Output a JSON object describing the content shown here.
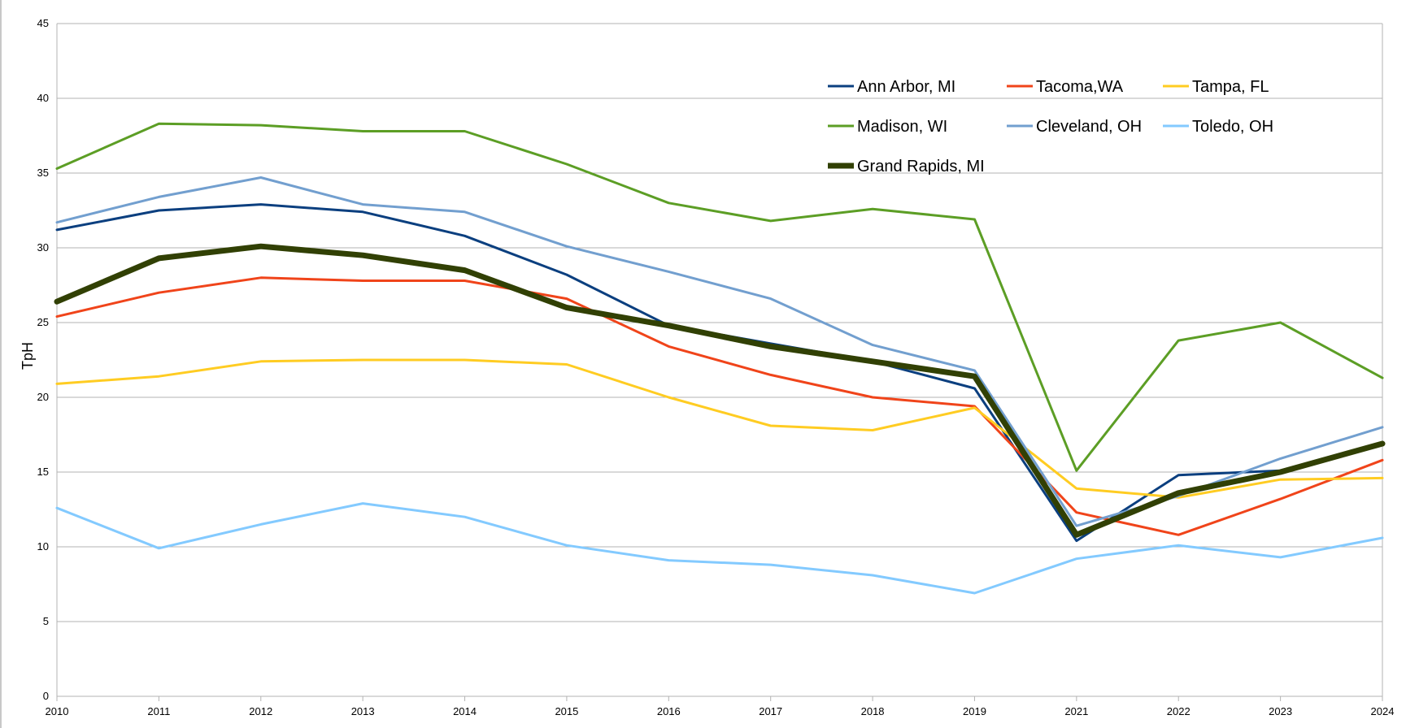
{
  "chart_data": {
    "type": "line",
    "title": "",
    "xlabel": "",
    "ylabel": "TpH",
    "ylim": [
      0,
      45
    ],
    "yticks": [
      0,
      5,
      10,
      15,
      20,
      25,
      30,
      35,
      40,
      45
    ],
    "grid": true,
    "legend_position": "top-right",
    "x": [
      "2010",
      "2011",
      "2012",
      "2013",
      "2014",
      "2015",
      "2016",
      "2017",
      "2018",
      "2019",
      "2021",
      "2022",
      "2023",
      "2024"
    ],
    "series": [
      {
        "name": "Ann Arbor, MI",
        "color": "#0b3f7f",
        "width": 3,
        "values": [
          31.2,
          32.5,
          32.9,
          32.4,
          30.8,
          28.2,
          24.8,
          23.6,
          22.4,
          20.6,
          10.4,
          14.8,
          15.1,
          17.0
        ]
      },
      {
        "name": "Tacoma,WA",
        "color": "#f0441a",
        "width": 3,
        "values": [
          25.4,
          27.0,
          28.0,
          27.8,
          27.8,
          26.6,
          23.4,
          21.5,
          20.0,
          19.4,
          12.3,
          10.8,
          13.2,
          15.8
        ]
      },
      {
        "name": "Tampa, FL",
        "color": "#ffcc22",
        "width": 3,
        "values": [
          20.9,
          21.4,
          22.4,
          22.5,
          22.5,
          22.2,
          20.0,
          18.1,
          17.8,
          19.3,
          13.9,
          13.3,
          14.5,
          14.6
        ]
      },
      {
        "name": "Madison, WI",
        "color": "#5c9e25",
        "width": 3,
        "values": [
          35.3,
          38.3,
          38.2,
          37.8,
          37.8,
          35.6,
          33.0,
          31.8,
          32.6,
          31.9,
          15.1,
          23.8,
          25.0,
          21.3
        ]
      },
      {
        "name": "Cleveland, OH",
        "color": "#729fcf",
        "width": 3,
        "values": [
          31.7,
          33.4,
          34.7,
          32.9,
          32.4,
          30.1,
          28.4,
          26.6,
          23.5,
          21.8,
          11.4,
          13.4,
          15.9,
          18.0
        ]
      },
      {
        "name": "Toledo, OH",
        "color": "#83caff",
        "width": 3,
        "values": [
          12.6,
          9.9,
          11.5,
          12.9,
          12.0,
          10.1,
          9.1,
          8.8,
          8.1,
          6.9,
          9.2,
          10.1,
          9.3,
          10.6
        ]
      },
      {
        "name": "Grand Rapids, MI",
        "color": "#314004",
        "width": 7,
        "values": [
          26.4,
          29.3,
          30.1,
          29.5,
          28.5,
          26.0,
          24.8,
          23.4,
          22.4,
          21.4,
          10.8,
          13.6,
          15.0,
          16.9
        ]
      }
    ]
  }
}
